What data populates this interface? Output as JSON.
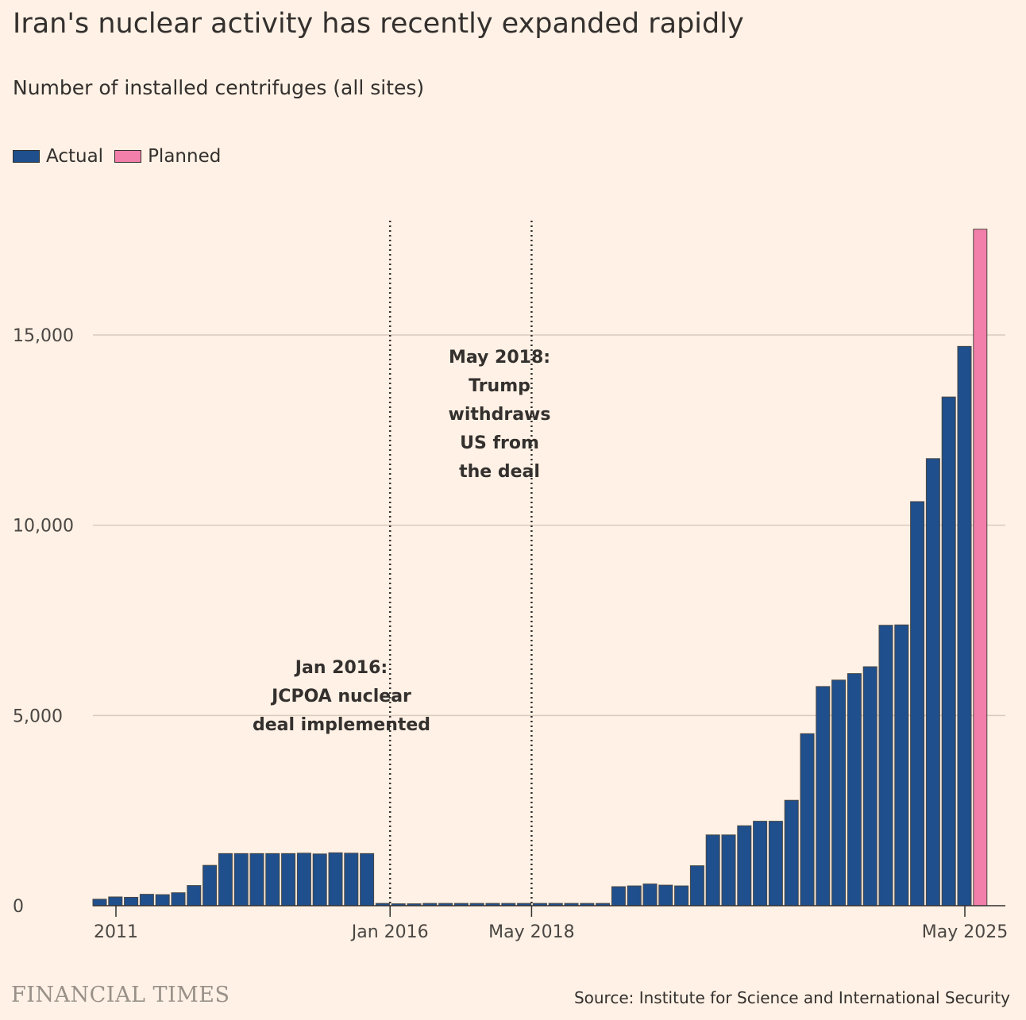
{
  "title": "Iran's nuclear activity has recently expanded rapidly",
  "subtitle": "Number of installed centrifuges (all sites)",
  "legend": {
    "actual": "Actual",
    "planned": "Planned"
  },
  "source": "Source: Institute for Science and International Security",
  "brand": "FINANCIAL TIMES",
  "colors": {
    "actual": "#1f4f8c",
    "planned": "#f27eaa",
    "background": "#fff1e5",
    "grid": "#d9cbbd"
  },
  "chart_data": {
    "type": "bar",
    "title": "Iran's nuclear activity has recently expanded rapidly",
    "ylabel": "",
    "xlabel": "",
    "ylim": [
      0,
      18000
    ],
    "y_ticks": [
      0,
      5000,
      10000,
      15000
    ],
    "y_tick_labels": [
      "0",
      "5,000",
      "10,000",
      "15,000"
    ],
    "x_tick_labels": [
      "2011",
      "Jan 2016",
      "May 2018",
      "May 2025"
    ],
    "x_tick_positions": [
      1,
      19,
      28,
      56
    ],
    "grid": true,
    "legend_position": "top-left",
    "series": [
      {
        "name": "Actual",
        "values": [
          170,
          230,
          220,
          300,
          290,
          340,
          530,
          1060,
          1370,
          1370,
          1370,
          1370,
          1370,
          1380,
          1360,
          1390,
          1380,
          1370,
          60,
          50,
          50,
          60,
          60,
          60,
          60,
          60,
          60,
          60,
          60,
          60,
          60,
          60,
          60,
          500,
          520,
          570,
          540,
          520,
          1050,
          1860,
          1860,
          2100,
          2220,
          2220,
          2770,
          4520,
          5760,
          5930,
          6100,
          6280,
          7370,
          7380,
          10620,
          11750,
          13370,
          14700,
          0
        ]
      },
      {
        "name": "Planned",
        "values": [
          0,
          0,
          0,
          0,
          0,
          0,
          0,
          0,
          0,
          0,
          0,
          0,
          0,
          0,
          0,
          0,
          0,
          0,
          0,
          0,
          0,
          0,
          0,
          0,
          0,
          0,
          0,
          0,
          0,
          0,
          0,
          0,
          0,
          0,
          0,
          0,
          0,
          0,
          0,
          0,
          0,
          0,
          0,
          0,
          0,
          0,
          0,
          0,
          0,
          0,
          0,
          0,
          0,
          0,
          0,
          0,
          17780
        ]
      }
    ],
    "annotations": [
      {
        "label": [
          "Jan 2016:",
          "JCPOA nuclear",
          "deal implemented"
        ],
        "x_index": 18.5
      },
      {
        "label": [
          "May 2018:",
          "Trump",
          "withdraws",
          "US from",
          "the deal"
        ],
        "x_index": 27.5
      }
    ]
  }
}
